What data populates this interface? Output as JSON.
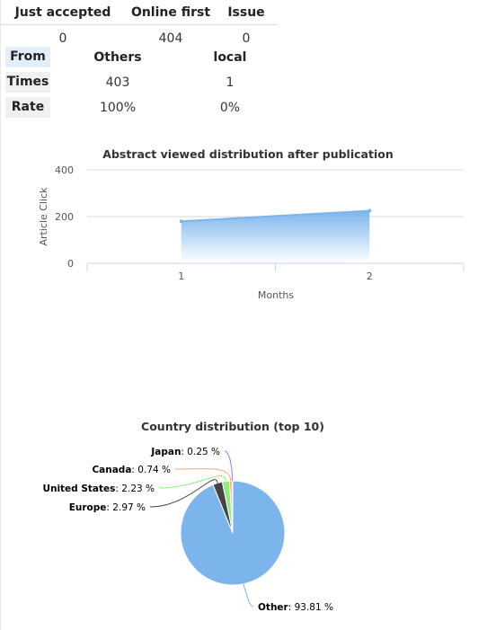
{
  "status_table": {
    "headers": [
      "Just accepted",
      "Online first",
      "Issue"
    ],
    "values": [
      "0",
      "404",
      "0"
    ]
  },
  "source_table": {
    "header": {
      "label": "From",
      "others": "Others",
      "local": "local"
    },
    "rows": [
      {
        "label": "Times",
        "others": "403",
        "local": "1"
      },
      {
        "label": "Rate",
        "others": "100%",
        "local": "0%"
      }
    ]
  },
  "chart_data": [
    {
      "type": "area",
      "title": "Abstract viewed distribution after publication",
      "xlabel": "Months",
      "ylabel": "Article Click",
      "x": [
        "1",
        "2"
      ],
      "series": [
        {
          "values": [
            180,
            225
          ]
        }
      ],
      "ylim": [
        0,
        400
      ],
      "yticks": [
        "0",
        "200",
        "400"
      ],
      "grid": true,
      "color": "#7cb5ec"
    },
    {
      "type": "pie",
      "title": "Country distribution (top 10)",
      "slices": [
        {
          "name": "Other",
          "value": 93.81,
          "label": "93.81 %",
          "color": "#7cb5ec"
        },
        {
          "name": "Europe",
          "value": 2.97,
          "label": "2.97 %",
          "color": "#434348"
        },
        {
          "name": "United States",
          "value": 2.23,
          "label": "2.23 %",
          "color": "#90ed7d"
        },
        {
          "name": "Canada",
          "value": 0.74,
          "label": "0.74 %",
          "color": "#f7a35c"
        },
        {
          "name": "Japan",
          "value": 0.25,
          "label": "0.25 %",
          "color": "#8085e9"
        }
      ]
    }
  ]
}
